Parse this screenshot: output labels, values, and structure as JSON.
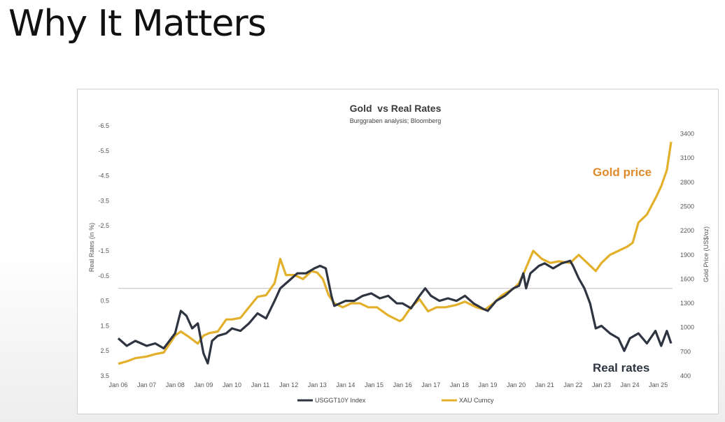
{
  "slide": {
    "title": "Why It Matters"
  },
  "chart_data": {
    "type": "line",
    "title": "Gold  vs Real Rates",
    "subtitle": "Burggraben analysis; Bloomberg",
    "ylabel_left": "Real Rates (in %)",
    "ylabel_right": "Gold Price (US$/oz)",
    "left_axis": {
      "inverted": true,
      "ylim": [
        -6.5,
        3.5
      ],
      "ticks": [
        "-6.5",
        "-5.5",
        "-4.5",
        "-3.5",
        "-2.5",
        "-1.5",
        "-0.5",
        "0.5",
        "1.5",
        "2.5",
        "3.5"
      ]
    },
    "right_axis": {
      "ylim": [
        400,
        3500
      ],
      "ticks": [
        "3400",
        "3100",
        "2800",
        "2500",
        "2200",
        "1900",
        "1600",
        "1300",
        "1000",
        "700",
        "400"
      ]
    },
    "x_ticks": [
      "Jan 06",
      "Jan 07",
      "Jan 08",
      "Jan 09",
      "Jan 10",
      "Jan 11",
      "Jan 12",
      "Jan 13",
      "Jan 14",
      "Jan 15",
      "Jan 16",
      "Jan 17",
      "Jan 18",
      "Jan 19",
      "Jan 20",
      "Jan 21",
      "Jan 22",
      "Jan 23",
      "Jan 24",
      "Jan 25"
    ],
    "x_range": [
      2006.0,
      2025.5
    ],
    "legend_position": "bottom",
    "grid": false,
    "annotations": [
      {
        "text": "Gold price",
        "color": "#E08A2C"
      },
      {
        "text": "Real rates",
        "color": "#2E3440"
      }
    ],
    "series": [
      {
        "name": "USGGT10Y Index",
        "axis": "left",
        "color": "#2E3440",
        "x": [
          2006.0,
          2006.3,
          2006.6,
          2007.0,
          2007.3,
          2007.6,
          2008.0,
          2008.2,
          2008.4,
          2008.6,
          2008.8,
          2009.0,
          2009.15,
          2009.3,
          2009.5,
          2009.8,
          2010.0,
          2010.3,
          2010.6,
          2010.9,
          2011.2,
          2011.5,
          2011.7,
          2012.0,
          2012.3,
          2012.6,
          2012.9,
          2013.1,
          2013.3,
          2013.5,
          2013.6,
          2013.8,
          2014.0,
          2014.3,
          2014.6,
          2014.9,
          2015.2,
          2015.5,
          2015.8,
          2016.0,
          2016.3,
          2016.6,
          2016.8,
          2017.0,
          2017.3,
          2017.6,
          2017.9,
          2018.2,
          2018.5,
          2018.8,
          2019.0,
          2019.3,
          2019.6,
          2019.9,
          2020.1,
          2020.25,
          2020.35,
          2020.5,
          2020.8,
          2021.0,
          2021.3,
          2021.6,
          2021.9,
          2022.0,
          2022.2,
          2022.4,
          2022.6,
          2022.8,
          2023.0,
          2023.3,
          2023.6,
          2023.8,
          2024.0,
          2024.3,
          2024.6,
          2024.9,
          2025.1,
          2025.3,
          2025.45
        ],
        "y": [
          2.0,
          2.3,
          2.1,
          2.3,
          2.2,
          2.4,
          1.8,
          0.9,
          1.1,
          1.6,
          1.4,
          2.6,
          3.0,
          2.1,
          1.9,
          1.8,
          1.6,
          1.7,
          1.4,
          1.0,
          1.2,
          0.5,
          0.0,
          -0.3,
          -0.6,
          -0.6,
          -0.8,
          -0.9,
          -0.8,
          0.3,
          0.7,
          0.6,
          0.5,
          0.5,
          0.3,
          0.2,
          0.4,
          0.3,
          0.6,
          0.6,
          0.8,
          0.3,
          0.0,
          0.3,
          0.5,
          0.4,
          0.5,
          0.3,
          0.6,
          0.8,
          0.9,
          0.5,
          0.3,
          0.0,
          -0.1,
          -0.6,
          0.0,
          -0.6,
          -0.9,
          -1.0,
          -0.8,
          -1.0,
          -1.1,
          -0.9,
          -0.4,
          0.0,
          0.6,
          1.6,
          1.5,
          1.8,
          2.0,
          2.5,
          2.0,
          1.8,
          2.2,
          1.7,
          2.3,
          1.7,
          2.2
        ]
      },
      {
        "name": "XAU Curncy",
        "axis": "right",
        "color": "#E2B02B",
        "x": [
          2006.0,
          2006.3,
          2006.6,
          2007.0,
          2007.3,
          2007.6,
          2008.0,
          2008.2,
          2008.5,
          2008.8,
          2009.0,
          2009.2,
          2009.5,
          2009.8,
          2010.0,
          2010.3,
          2010.6,
          2010.9,
          2011.2,
          2011.5,
          2011.7,
          2011.9,
          2012.2,
          2012.5,
          2012.8,
          2013.0,
          2013.2,
          2013.4,
          2013.6,
          2013.9,
          2014.2,
          2014.5,
          2014.8,
          2015.1,
          2015.5,
          2015.9,
          2016.0,
          2016.3,
          2016.6,
          2016.9,
          2017.2,
          2017.5,
          2017.9,
          2018.2,
          2018.6,
          2018.9,
          2019.2,
          2019.5,
          2019.9,
          2020.1,
          2020.3,
          2020.6,
          2020.9,
          2021.2,
          2021.5,
          2021.9,
          2022.2,
          2022.5,
          2022.8,
          2023.0,
          2023.3,
          2023.6,
          2023.9,
          2024.1,
          2024.3,
          2024.6,
          2024.9,
          2025.1,
          2025.3,
          2025.45
        ],
        "y": [
          550,
          580,
          620,
          640,
          670,
          690,
          900,
          950,
          880,
          800,
          900,
          930,
          950,
          1100,
          1100,
          1120,
          1250,
          1380,
          1400,
          1550,
          1850,
          1650,
          1650,
          1600,
          1700,
          1680,
          1600,
          1400,
          1300,
          1250,
          1300,
          1300,
          1250,
          1250,
          1150,
          1080,
          1100,
          1250,
          1350,
          1200,
          1250,
          1250,
          1280,
          1320,
          1250,
          1220,
          1300,
          1400,
          1480,
          1550,
          1700,
          1950,
          1850,
          1800,
          1820,
          1800,
          1900,
          1800,
          1700,
          1800,
          1900,
          1950,
          2000,
          2050,
          2300,
          2400,
          2600,
          2750,
          2950,
          3300
        ]
      }
    ]
  }
}
